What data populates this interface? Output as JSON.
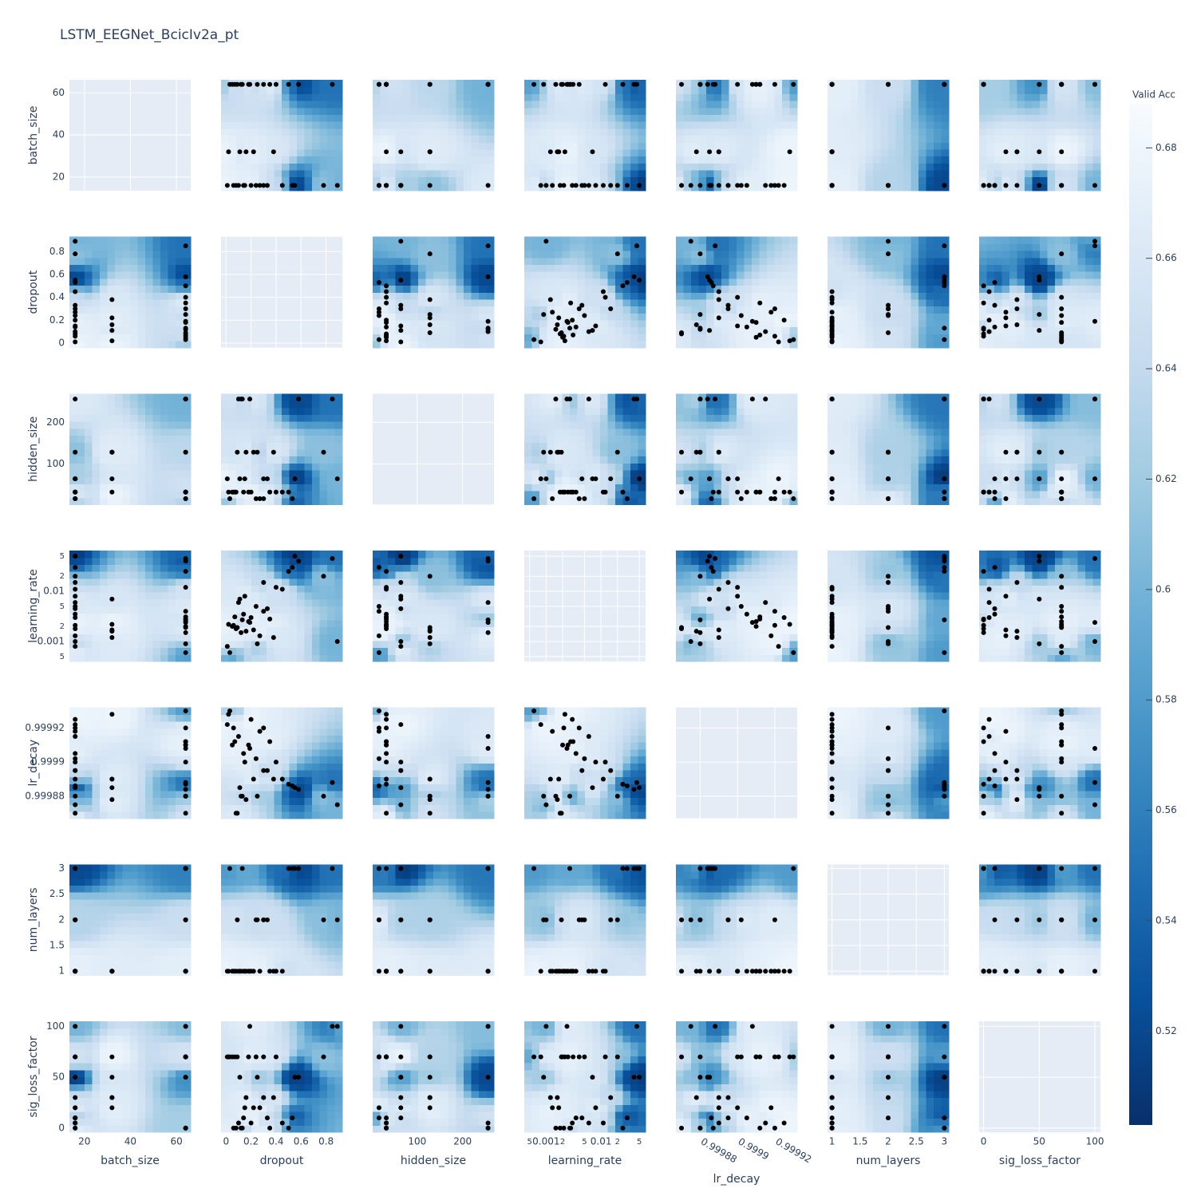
{
  "chart_data": {
    "type": "contour",
    "title": "LSTM_EEGNet_BcicIv2a_pt",
    "objective": {
      "name": "Valid Acc",
      "values": [
        0.675,
        0.67,
        0.68,
        0.51,
        0.66,
        0.665,
        0.672,
        0.55,
        0.667,
        0.678,
        0.62,
        0.53,
        0.673,
        0.662,
        0.6,
        0.655,
        0.669,
        0.676,
        0.58,
        0.64,
        0.52,
        0.674,
        0.61,
        0.671,
        0.658,
        0.677,
        0.652,
        0.648,
        0.666,
        0.679,
        0.56,
        0.663,
        0.668,
        0.674,
        0.645,
        0.59
      ],
      "lim": [
        0.503,
        0.688
      ],
      "ticks": [
        0.52,
        0.54,
        0.56,
        0.58,
        0.6,
        0.62,
        0.64,
        0.66,
        0.68
      ]
    },
    "colorscale": [
      "#08306b",
      "#08519c",
      "#2171b5",
      "#4292c6",
      "#6baed6",
      "#9ecae1",
      "#c6dbef",
      "#deebf7",
      "#f7fbff"
    ],
    "point_color": "#000000",
    "params": [
      {
        "name": "batch_size",
        "lim": [
          13.5,
          66.2
        ],
        "ticks": [
          20,
          40,
          60
        ],
        "values": [
          64,
          64,
          16,
          16,
          32,
          64,
          16,
          64,
          16,
          32,
          64,
          16,
          64,
          16,
          16,
          64,
          32,
          16,
          64,
          16,
          64,
          16,
          16,
          64,
          32,
          16,
          64,
          16,
          64,
          16,
          64,
          16,
          32,
          64,
          16,
          64
        ]
      },
      {
        "name": "dropout",
        "lim": [
          -0.04,
          0.93
        ],
        "ticks": [
          0,
          0.2,
          0.4,
          0.6,
          0.8
        ],
        "values": [
          0.05,
          0.12,
          0.2,
          0.55,
          0.38,
          0.3,
          0.08,
          0.85,
          0.15,
          0.02,
          0.25,
          0.53,
          0.18,
          0.1,
          0.89,
          0.4,
          0.22,
          0.06,
          0.03,
          0.3,
          0.58,
          0.14,
          0.78,
          0.35,
          0.11,
          0.27,
          0.09,
          0.45,
          0.19,
          0.01,
          0.5,
          0.24,
          0.16,
          0.07,
          0.33,
          0.13
        ]
      },
      {
        "name": "hidden_size",
        "lim": [
          2,
          269
        ],
        "ticks": [
          100,
          200
        ],
        "values": [
          32,
          256,
          32,
          64,
          128,
          16,
          32,
          256,
          64,
          32,
          128,
          16,
          32,
          256,
          64,
          32,
          128,
          32,
          16,
          64,
          256,
          32,
          128,
          32,
          64,
          16,
          128,
          32,
          256,
          64,
          32,
          16,
          128,
          32,
          64,
          256
        ]
      },
      {
        "name": "learning_rate",
        "log": true,
        "lim": [
          0.0004,
          0.065
        ],
        "ticks": [
          {
            "value": 0.0005,
            "label": "5"
          },
          0.001,
          {
            "value": 0.002,
            "label": "2"
          },
          {
            "value": 0.005,
            "label": "5"
          },
          0.01,
          {
            "value": 0.02,
            "label": "2"
          },
          {
            "value": 0.05,
            "label": "5"
          }
        ],
        "values": [
          0.002,
          0.0015,
          0.003,
          0.05,
          0.0012,
          0.004,
          0.0018,
          0.045,
          0.008,
          0.0022,
          0.0009,
          0.03,
          0.0025,
          0.006,
          0.001,
          0.012,
          0.0017,
          0.0021,
          0.0006,
          0.015,
          0.04,
          0.0035,
          0.02,
          0.0028,
          0.007,
          0.0013,
          0.0019,
          0.011,
          0.0024,
          0.0008,
          0.025,
          0.005,
          0.0016,
          0.0031,
          0.0045,
          0.0027
        ]
      },
      {
        "name": "lr_decay",
        "lim": [
          0.999867,
          0.999932
        ],
        "ticks": [
          0.99988,
          0.9999,
          0.99992
        ],
        "values": [
          0.99991,
          0.99988,
          0.999925,
          0.999885,
          0.99989,
          0.99992,
          0.99987,
          0.999888,
          0.9999,
          0.999928,
          0.99988,
          0.999886,
          0.99991,
          0.999915,
          0.999875,
          0.9999,
          0.99989,
          0.99992,
          0.99993,
          0.999895,
          0.999884,
          0.999905,
          0.99988,
          0.999912,
          0.999885,
          0.999918,
          0.99987,
          0.99989,
          0.999908,
          0.999922,
          0.999887,
          0.999902,
          0.999878,
          0.999912,
          0.999895,
          0.99988
        ]
      },
      {
        "name": "num_layers",
        "lim": [
          0.92,
          3.08
        ],
        "ticks": [
          1,
          1.5,
          2,
          2.5,
          3
        ],
        "values": [
          1,
          1,
          1,
          3,
          1,
          2,
          1,
          3,
          1,
          1,
          2,
          3,
          1,
          1,
          2,
          1,
          1,
          1,
          3,
          2,
          3,
          1,
          2,
          1,
          1,
          1,
          2,
          1,
          1,
          1,
          3,
          2,
          1,
          1,
          2,
          3
        ]
      },
      {
        "name": "sig_loss_factor",
        "lim": [
          -4,
          105
        ],
        "ticks": [
          0,
          50,
          100
        ],
        "values": [
          70,
          0,
          5,
          50,
          30,
          70,
          0,
          100,
          20,
          70,
          50,
          10,
          70,
          5,
          100,
          70,
          20,
          0,
          70,
          30,
          50,
          10,
          70,
          0,
          50,
          20,
          70,
          5,
          100,
          70,
          0,
          70,
          30,
          70,
          10,
          0
        ]
      }
    ]
  }
}
